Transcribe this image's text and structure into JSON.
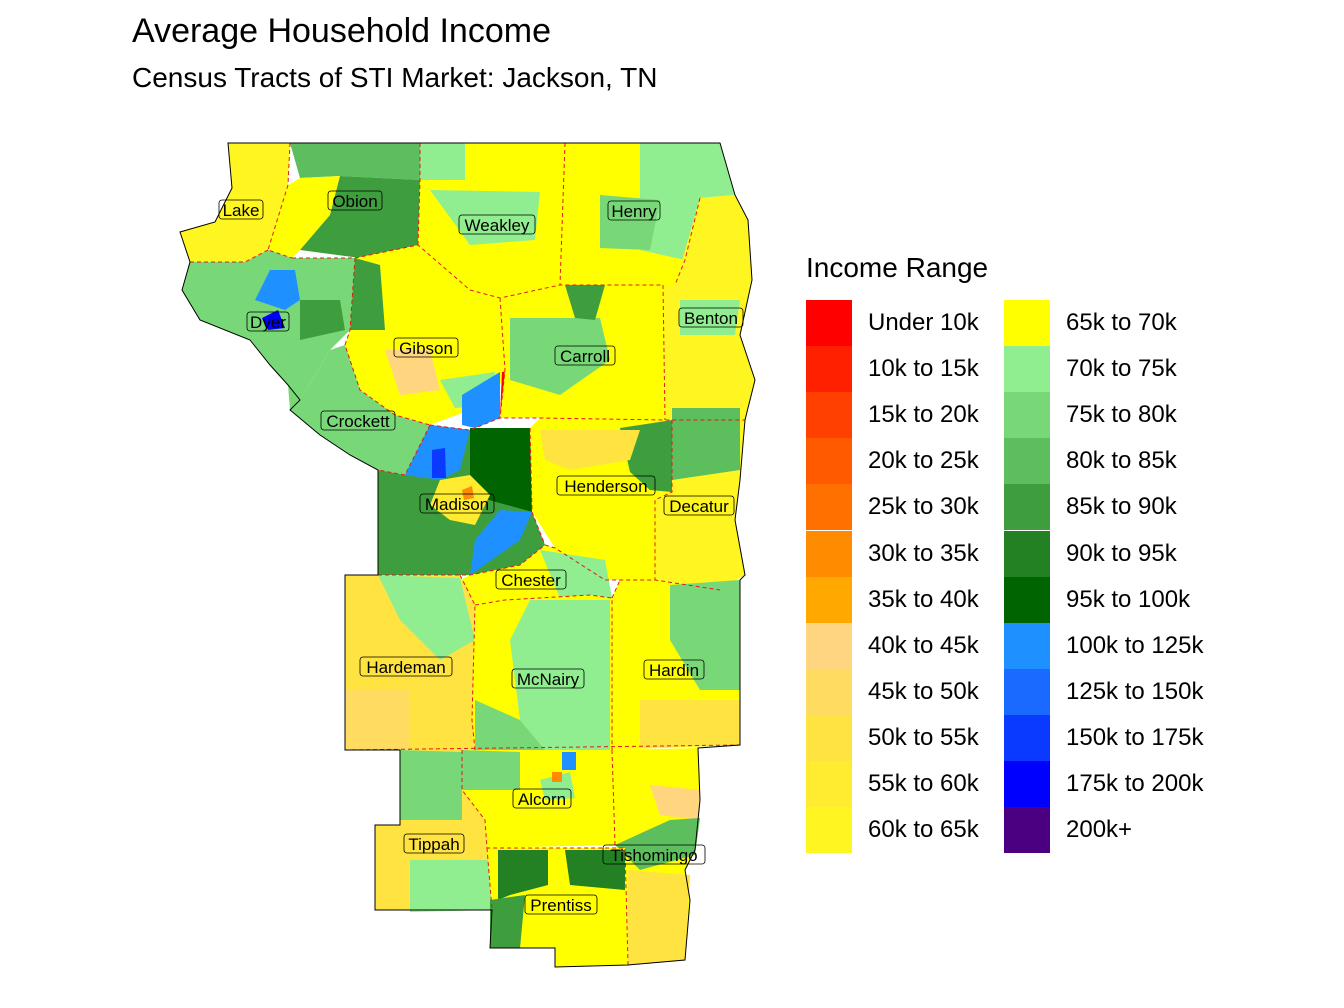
{
  "header": {
    "title": "Average Household Income",
    "subtitle": "Census Tracts of STI Market: Jackson, TN"
  },
  "legend": {
    "title": "Income Range",
    "items": [
      {
        "label": "Under 10k",
        "color": "#FF0000"
      },
      {
        "label": "10k to 15k",
        "color": "#FF2000"
      },
      {
        "label": "15k to 20k",
        "color": "#FF4000"
      },
      {
        "label": "20k to 25k",
        "color": "#FF5A00"
      },
      {
        "label": "25k to 30k",
        "color": "#FF7000"
      },
      {
        "label": "30k to 35k",
        "color": "#FF8C00"
      },
      {
        "label": "35k to 40k",
        "color": "#FFA800"
      },
      {
        "label": "40k to 45k",
        "color": "#FFD580"
      },
      {
        "label": "45k to 50k",
        "color": "#FFDC60"
      },
      {
        "label": "50k to 55k",
        "color": "#FFE340"
      },
      {
        "label": "55k to 60k",
        "color": "#FFEC30"
      },
      {
        "label": "60k to 65k",
        "color": "#FFF520"
      },
      {
        "label": "65k to 70k",
        "color": "#FFFF00"
      },
      {
        "label": "70k to 75k",
        "color": "#90EE90"
      },
      {
        "label": "75k to 80k",
        "color": "#78D878"
      },
      {
        "label": "80k to 85k",
        "color": "#5DBE5D"
      },
      {
        "label": "85k to 90k",
        "color": "#3E9E3E"
      },
      {
        "label": "90k to 95k",
        "color": "#238023"
      },
      {
        "label": "95k to 100k",
        "color": "#006400"
      },
      {
        "label": "100k to 125k",
        "color": "#1E90FF"
      },
      {
        "label": "125k to 150k",
        "color": "#1A6AFF"
      },
      {
        "label": "150k to 175k",
        "color": "#0A3AFF"
      },
      {
        "label": "175k to 200k",
        "color": "#0000FF"
      },
      {
        "label": "200k+",
        "color": "#4B0082"
      }
    ]
  },
  "counties": {
    "lake": "Lake",
    "obion": "Obion",
    "weakley": "Weakley",
    "henry": "Henry",
    "dyer": "Dyer",
    "benton": "Benton",
    "gibson": "Gibson",
    "carroll": "Carroll",
    "crockett": "Crockett",
    "henderson": "Henderson",
    "madison": "Madison",
    "decatur": "Decatur",
    "chester": "Chester",
    "hardeman": "Hardeman",
    "mcnairy": "McNairy",
    "hardin": "Hardin",
    "alcorn": "Alcorn",
    "tippah": "Tippah",
    "tishomingo": "Tishomingo",
    "prentiss": "Prentiss"
  },
  "colors": {
    "county_border": "#E41A1C",
    "outline": "#000000"
  }
}
